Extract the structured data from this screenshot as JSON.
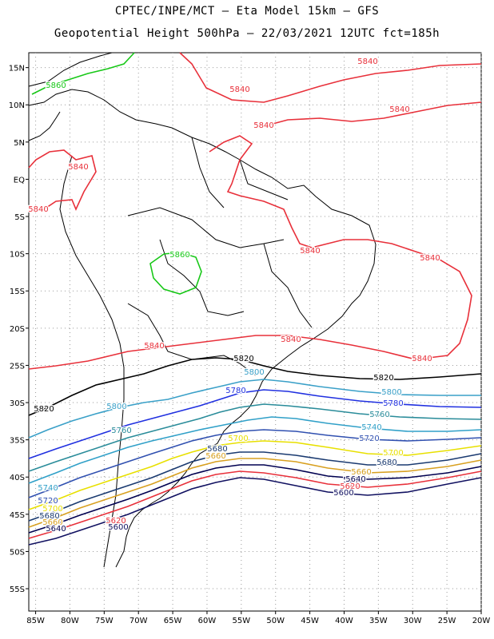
{
  "header": {
    "line1": "CPTEC/INPE/MCT –  Eta Model 15km – GFS",
    "line2": "Geopotential Height 500hPa – 22/03/2021 12UTC fct=185h"
  },
  "map": {
    "lat_ticks": [
      "15N",
      "10N",
      "5N",
      "EQ",
      "5S",
      "10S",
      "15S",
      "20S",
      "25S",
      "30S",
      "35S",
      "40S",
      "45S",
      "50S",
      "55S"
    ],
    "lon_ticks": [
      "85W",
      "80W",
      "75W",
      "70W",
      "65W",
      "60W",
      "55W",
      "50W",
      "45W",
      "40W",
      "35W",
      "30W",
      "25W",
      "20W"
    ],
    "contour_labels": [
      {
        "text": "5840",
        "color": "#e8303a"
      },
      {
        "text": "5840",
        "color": "#e8303a"
      },
      {
        "text": "5840",
        "color": "#e8303a"
      },
      {
        "text": "5840",
        "color": "#e8303a"
      },
      {
        "text": "5840",
        "color": "#e8303a"
      },
      {
        "text": "5840",
        "color": "#e8303a"
      },
      {
        "text": "5840",
        "color": "#e8303a"
      },
      {
        "text": "5840",
        "color": "#e8303a"
      },
      {
        "text": "5840",
        "color": "#e8303a"
      },
      {
        "text": "5840",
        "color": "#e8303a"
      },
      {
        "text": "5840",
        "color": "#e8303a"
      },
      {
        "text": "5860",
        "color": "#18c818"
      },
      {
        "text": "5860",
        "color": "#18c818"
      },
      {
        "text": "5820",
        "color": "#000000"
      },
      {
        "text": "5820",
        "color": "#000000"
      },
      {
        "text": "5820",
        "color": "#000000"
      },
      {
        "text": "5800",
        "color": "#3aa0c8"
      },
      {
        "text": "5800",
        "color": "#3aa0c8"
      },
      {
        "text": "5800",
        "color": "#3aa0c8"
      },
      {
        "text": "5780",
        "color": "#2030e0"
      },
      {
        "text": "5780",
        "color": "#2030e0"
      },
      {
        "text": "5760",
        "color": "#2a8c9a"
      },
      {
        "text": "5760",
        "color": "#2a8c9a"
      },
      {
        "text": "5740",
        "color": "#30a0c8"
      },
      {
        "text": "5740",
        "color": "#30a0c8"
      },
      {
        "text": "5720",
        "color": "#3050b0"
      },
      {
        "text": "5720",
        "color": "#3050b0"
      },
      {
        "text": "5700",
        "color": "#e8e000"
      },
      {
        "text": "5700",
        "color": "#e8e000"
      },
      {
        "text": "5700",
        "color": "#e8e000"
      },
      {
        "text": "5680",
        "color": "#1a3a70"
      },
      {
        "text": "5680",
        "color": "#1a3a70"
      },
      {
        "text": "5680",
        "color": "#1a3a70"
      },
      {
        "text": "5660",
        "color": "#d8a020"
      },
      {
        "text": "5660",
        "color": "#d8a020"
      },
      {
        "text": "5660",
        "color": "#d8a020"
      },
      {
        "text": "5640",
        "color": "#000050"
      },
      {
        "text": "5640",
        "color": "#000050"
      },
      {
        "text": "5640",
        "color": "#000050"
      },
      {
        "text": "5620",
        "color": "#e8303a"
      },
      {
        "text": "5620",
        "color": "#e8303a"
      },
      {
        "text": "5600",
        "color": "#101060"
      },
      {
        "text": "5600",
        "color": "#101060"
      }
    ]
  },
  "colors": {
    "c5860": "#18c818",
    "c5840": "#e8303a",
    "c5820": "#000000",
    "c5800": "#3aa0c8",
    "c5780": "#2030e0",
    "c5760": "#2a8c9a",
    "c5740": "#30a0c8",
    "c5720": "#3050b0",
    "c5700": "#e8e000",
    "c5680": "#1a3a70",
    "c5660": "#d8a020",
    "c5640": "#000050",
    "c5620": "#e8303a",
    "c5600": "#101060"
  }
}
